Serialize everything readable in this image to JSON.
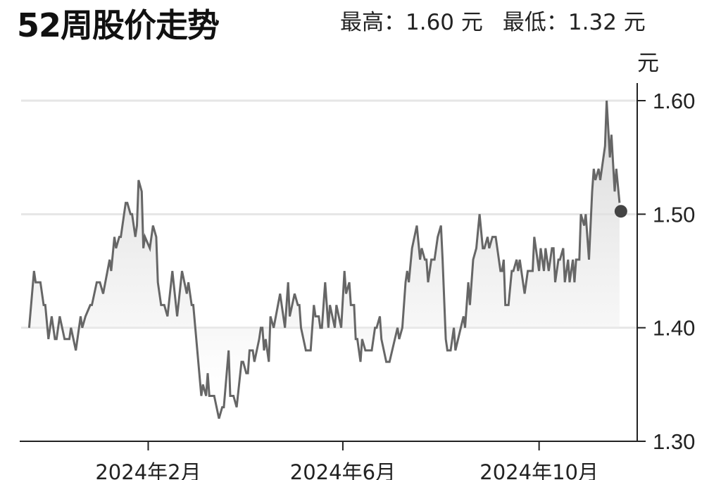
{
  "header": {
    "title": "52周股价走势",
    "high_label": "最高：1.60 元",
    "low_label": "最低：1.32 元"
  },
  "chart_data": {
    "type": "line",
    "title": "52周股价走势",
    "ylabel": "元",
    "ylim": [
      1.3,
      1.6
    ],
    "xlim": [
      "2023-11-14",
      "2024-12-01"
    ],
    "yticks": [
      1.3,
      1.4,
      1.5,
      1.6
    ],
    "ytick_labels": [
      "1.30",
      "1.40",
      "1.50",
      "1.60"
    ],
    "xticks": [
      "2024-02-01",
      "2024-06-01",
      "2024-10-01"
    ],
    "xtick_labels": [
      "2024年2月",
      "2024年6月",
      "2024年10月"
    ],
    "grid": true,
    "y_axis_side": "right",
    "line_color": "#666666",
    "fill_color": "#d0d0d0",
    "marker_color": "#444444",
    "high": 1.6,
    "low": 1.32,
    "points": [
      [
        "2023-11-19",
        1.4
      ],
      [
        "2023-11-22",
        1.45
      ],
      [
        "2023-11-23",
        1.44
      ],
      [
        "2023-11-26",
        1.44
      ],
      [
        "2023-11-28",
        1.42
      ],
      [
        "2023-11-29",
        1.42
      ],
      [
        "2023-12-01",
        1.39
      ],
      [
        "2023-12-03",
        1.41
      ],
      [
        "2023-12-05",
        1.39
      ],
      [
        "2023-12-06",
        1.39
      ],
      [
        "2023-12-08",
        1.41
      ],
      [
        "2023-12-11",
        1.39
      ],
      [
        "2023-12-14",
        1.39
      ],
      [
        "2023-12-15",
        1.4
      ],
      [
        "2023-12-18",
        1.38
      ],
      [
        "2023-12-21",
        1.41
      ],
      [
        "2023-12-22",
        1.4
      ],
      [
        "2023-12-24",
        1.41
      ],
      [
        "2023-12-27",
        1.42
      ],
      [
        "2023-12-28",
        1.42
      ],
      [
        "2023-12-31",
        1.44
      ],
      [
        "2024-01-02",
        1.44
      ],
      [
        "2024-01-04",
        1.43
      ],
      [
        "2024-01-08",
        1.46
      ],
      [
        "2024-01-09",
        1.45
      ],
      [
        "2024-01-11",
        1.48
      ],
      [
        "2024-01-12",
        1.47
      ],
      [
        "2024-01-14",
        1.48
      ],
      [
        "2024-01-15",
        1.48
      ],
      [
        "2024-01-18",
        1.51
      ],
      [
        "2024-01-19",
        1.51
      ],
      [
        "2024-01-21",
        1.5
      ],
      [
        "2024-01-22",
        1.5
      ],
      [
        "2024-01-24",
        1.48
      ],
      [
        "2024-01-25",
        1.49
      ],
      [
        "2024-01-26",
        1.53
      ],
      [
        "2024-01-28",
        1.52
      ],
      [
        "2024-01-29",
        1.47
      ],
      [
        "2024-01-30",
        1.48
      ],
      [
        "2024-02-02",
        1.47
      ],
      [
        "2024-02-04",
        1.49
      ],
      [
        "2024-02-06",
        1.48
      ],
      [
        "2024-02-07",
        1.44
      ],
      [
        "2024-02-09",
        1.42
      ],
      [
        "2024-02-11",
        1.42
      ],
      [
        "2024-02-13",
        1.41
      ],
      [
        "2024-02-16",
        1.45
      ],
      [
        "2024-02-19",
        1.41
      ],
      [
        "2024-02-22",
        1.45
      ],
      [
        "2024-02-25",
        1.43
      ],
      [
        "2024-02-26",
        1.44
      ],
      [
        "2024-02-28",
        1.42
      ],
      [
        "2024-02-29",
        1.42
      ],
      [
        "2024-03-05",
        1.34
      ],
      [
        "2024-03-06",
        1.35
      ],
      [
        "2024-03-08",
        1.34
      ],
      [
        "2024-03-09",
        1.36
      ],
      [
        "2024-03-10",
        1.34
      ],
      [
        "2024-03-13",
        1.34
      ],
      [
        "2024-03-16",
        1.32
      ],
      [
        "2024-03-18",
        1.33
      ],
      [
        "2024-03-19",
        1.33
      ],
      [
        "2024-03-22",
        1.38
      ],
      [
        "2024-03-23",
        1.34
      ],
      [
        "2024-03-25",
        1.34
      ],
      [
        "2024-03-27",
        1.33
      ],
      [
        "2024-03-30",
        1.37
      ],
      [
        "2024-03-31",
        1.37
      ],
      [
        "2024-04-02",
        1.36
      ],
      [
        "2024-04-03",
        1.36
      ],
      [
        "2024-04-04",
        1.38
      ],
      [
        "2024-04-06",
        1.38
      ],
      [
        "2024-04-07",
        1.37
      ],
      [
        "2024-04-10",
        1.39
      ],
      [
        "2024-04-11",
        1.4
      ],
      [
        "2024-04-12",
        1.4
      ],
      [
        "2024-04-13",
        1.38
      ],
      [
        "2024-04-14",
        1.39
      ],
      [
        "2024-04-16",
        1.37
      ],
      [
        "2024-04-17",
        1.41
      ],
      [
        "2024-04-19",
        1.4
      ],
      [
        "2024-04-23",
        1.43
      ],
      [
        "2024-04-26",
        1.4
      ],
      [
        "2024-04-28",
        1.44
      ],
      [
        "2024-04-29",
        1.41
      ],
      [
        "2024-05-02",
        1.43
      ],
      [
        "2024-05-04",
        1.42
      ],
      [
        "2024-05-05",
        1.42
      ],
      [
        "2024-05-06",
        1.4
      ],
      [
        "2024-05-09",
        1.38
      ],
      [
        "2024-05-12",
        1.38
      ],
      [
        "2024-05-14",
        1.42
      ],
      [
        "2024-05-15",
        1.41
      ],
      [
        "2024-05-17",
        1.41
      ],
      [
        "2024-05-18",
        1.4
      ],
      [
        "2024-05-19",
        1.4
      ],
      [
        "2024-05-21",
        1.44
      ],
      [
        "2024-05-23",
        1.4
      ],
      [
        "2024-05-24",
        1.42
      ],
      [
        "2024-05-27",
        1.4
      ],
      [
        "2024-05-28",
        1.42
      ],
      [
        "2024-05-31",
        1.4
      ],
      [
        "2024-06-02",
        1.45
      ],
      [
        "2024-06-03",
        1.43
      ],
      [
        "2024-06-05",
        1.44
      ],
      [
        "2024-06-06",
        1.42
      ],
      [
        "2024-06-08",
        1.42
      ],
      [
        "2024-06-09",
        1.39
      ],
      [
        "2024-06-10",
        1.39
      ],
      [
        "2024-06-12",
        1.37
      ],
      [
        "2024-06-13",
        1.39
      ],
      [
        "2024-06-15",
        1.38
      ],
      [
        "2024-06-19",
        1.38
      ],
      [
        "2024-06-21",
        1.4
      ],
      [
        "2024-06-22",
        1.4
      ],
      [
        "2024-06-24",
        1.41
      ],
      [
        "2024-06-25",
        1.39
      ],
      [
        "2024-06-28",
        1.37
      ],
      [
        "2024-06-30",
        1.37
      ],
      [
        "2024-07-05",
        1.4
      ],
      [
        "2024-07-06",
        1.39
      ],
      [
        "2024-07-08",
        1.4
      ],
      [
        "2024-07-10",
        1.44
      ],
      [
        "2024-07-11",
        1.45
      ],
      [
        "2024-07-12",
        1.44
      ],
      [
        "2024-07-14",
        1.47
      ],
      [
        "2024-07-17",
        1.49
      ],
      [
        "2024-07-19",
        1.46
      ],
      [
        "2024-07-20",
        1.47
      ],
      [
        "2024-07-22",
        1.46
      ],
      [
        "2024-07-23",
        1.46
      ],
      [
        "2024-07-24",
        1.44
      ],
      [
        "2024-07-26",
        1.46
      ],
      [
        "2024-07-28",
        1.46
      ],
      [
        "2024-07-30",
        1.48
      ],
      [
        "2024-08-01",
        1.49
      ],
      [
        "2024-08-02",
        1.46
      ],
      [
        "2024-08-04",
        1.39
      ],
      [
        "2024-08-05",
        1.38
      ],
      [
        "2024-08-07",
        1.38
      ],
      [
        "2024-08-09",
        1.4
      ],
      [
        "2024-08-10",
        1.38
      ],
      [
        "2024-08-15",
        1.41
      ],
      [
        "2024-08-16",
        1.4
      ],
      [
        "2024-08-18",
        1.44
      ],
      [
        "2024-08-19",
        1.42
      ],
      [
        "2024-08-21",
        1.46
      ],
      [
        "2024-08-23",
        1.47
      ],
      [
        "2024-08-25",
        1.5
      ],
      [
        "2024-08-27",
        1.47
      ],
      [
        "2024-08-28",
        1.47
      ],
      [
        "2024-08-30",
        1.48
      ],
      [
        "2024-08-31",
        1.47
      ],
      [
        "2024-09-02",
        1.48
      ],
      [
        "2024-09-04",
        1.48
      ],
      [
        "2024-09-07",
        1.45
      ],
      [
        "2024-09-08",
        1.45
      ],
      [
        "2024-09-09",
        1.46
      ],
      [
        "2024-09-10",
        1.42
      ],
      [
        "2024-09-12",
        1.42
      ],
      [
        "2024-09-14",
        1.45
      ],
      [
        "2024-09-15",
        1.45
      ],
      [
        "2024-09-17",
        1.46
      ],
      [
        "2024-09-18",
        1.45
      ],
      [
        "2024-09-19",
        1.46
      ],
      [
        "2024-09-22",
        1.43
      ],
      [
        "2024-09-24",
        1.45
      ],
      [
        "2024-09-27",
        1.45
      ],
      [
        "2024-09-28",
        1.48
      ],
      [
        "2024-10-01",
        1.45
      ],
      [
        "2024-10-02",
        1.47
      ],
      [
        "2024-10-04",
        1.45
      ],
      [
        "2024-10-05",
        1.47
      ],
      [
        "2024-10-07",
        1.45
      ],
      [
        "2024-10-09",
        1.47
      ],
      [
        "2024-10-10",
        1.47
      ],
      [
        "2024-10-11",
        1.44
      ],
      [
        "2024-10-13",
        1.46
      ],
      [
        "2024-10-14",
        1.46
      ],
      [
        "2024-10-16",
        1.47
      ],
      [
        "2024-10-17",
        1.44
      ],
      [
        "2024-10-19",
        1.46
      ],
      [
        "2024-10-20",
        1.44
      ],
      [
        "2024-10-22",
        1.46
      ],
      [
        "2024-10-23",
        1.44
      ],
      [
        "2024-10-24",
        1.46
      ],
      [
        "2024-10-26",
        1.46
      ],
      [
        "2024-10-27",
        1.5
      ],
      [
        "2024-10-29",
        1.49
      ],
      [
        "2024-10-30",
        1.5
      ],
      [
        "2024-11-01",
        1.46
      ],
      [
        "2024-11-03",
        1.52
      ],
      [
        "2024-11-04",
        1.54
      ],
      [
        "2024-11-05",
        1.53
      ],
      [
        "2024-11-07",
        1.54
      ],
      [
        "2024-11-08",
        1.53
      ],
      [
        "2024-11-11",
        1.56
      ],
      [
        "2024-11-12",
        1.6
      ],
      [
        "2024-11-14",
        1.55
      ],
      [
        "2024-11-15",
        1.57
      ],
      [
        "2024-11-17",
        1.52
      ],
      [
        "2024-11-18",
        1.54
      ],
      [
        "2024-11-20",
        1.51
      ]
    ]
  }
}
